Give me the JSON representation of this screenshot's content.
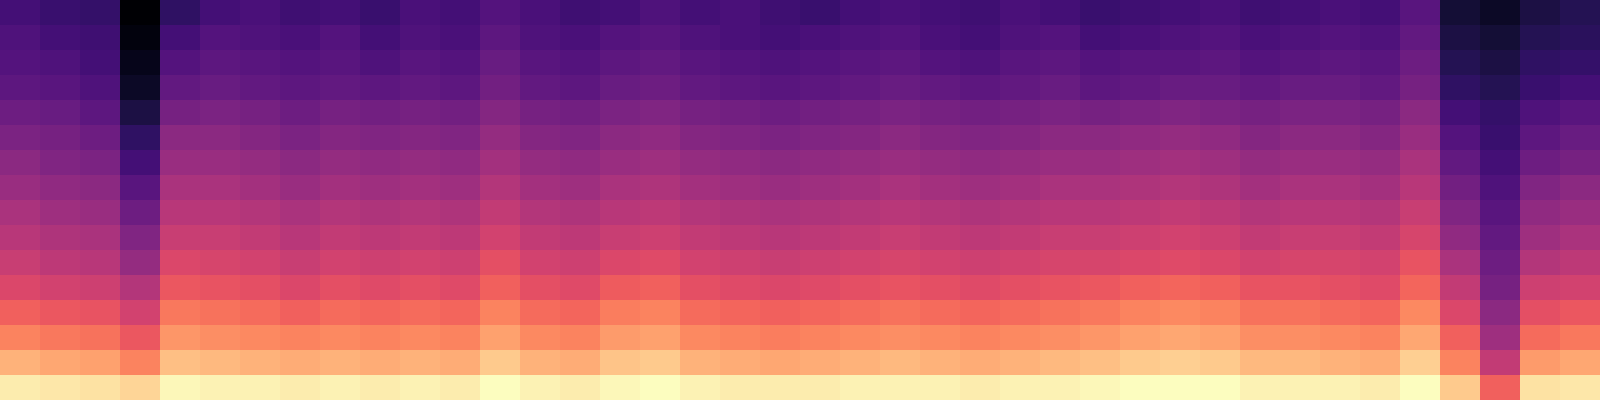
{
  "chart_data": {
    "type": "heatmap",
    "color": "magma",
    "tick_labels": false,
    "cells": [
      [
        30,
        28,
        27,
        12,
        26,
        30,
        31,
        29,
        30,
        28,
        31,
        30,
        33,
        31,
        29,
        30,
        32,
        30,
        31,
        29,
        28,
        30,
        31,
        30,
        29,
        31,
        30,
        28,
        29,
        30,
        31,
        29,
        30,
        31,
        30,
        34,
        20,
        18,
        22,
        24
      ],
      [
        32,
        30,
        29,
        14,
        30,
        33,
        32,
        31,
        33,
        30,
        32,
        31,
        35,
        32,
        31,
        33,
        34,
        32,
        31,
        30,
        31,
        32,
        33,
        31,
        30,
        32,
        33,
        30,
        31,
        32,
        33,
        31,
        32,
        33,
        32,
        36,
        22,
        20,
        24,
        25
      ],
      [
        33,
        32,
        30,
        16,
        33,
        35,
        34,
        33,
        34,
        32,
        34,
        33,
        37,
        34,
        33,
        35,
        36,
        34,
        33,
        32,
        33,
        34,
        35,
        33,
        32,
        34,
        35,
        33,
        34,
        34,
        35,
        33,
        34,
        35,
        34,
        38,
        24,
        22,
        26,
        27
      ],
      [
        35,
        34,
        32,
        18,
        36,
        37,
        36,
        35,
        36,
        35,
        36,
        35,
        39,
        36,
        35,
        37,
        38,
        36,
        35,
        34,
        35,
        36,
        37,
        36,
        35,
        36,
        37,
        35,
        36,
        37,
        37,
        36,
        37,
        37,
        36,
        40,
        26,
        24,
        28,
        30
      ],
      [
        38,
        37,
        35,
        22,
        40,
        41,
        40,
        38,
        40,
        39,
        40,
        39,
        43,
        40,
        39,
        41,
        42,
        40,
        39,
        38,
        39,
        40,
        41,
        40,
        39,
        40,
        41,
        40,
        41,
        42,
        41,
        40,
        41,
        41,
        40,
        44,
        30,
        27,
        32,
        34
      ],
      [
        41,
        40,
        38,
        26,
        44,
        44,
        43,
        41,
        43,
        42,
        43,
        42,
        46,
        43,
        42,
        44,
        45,
        43,
        42,
        41,
        42,
        43,
        44,
        43,
        42,
        43,
        44,
        44,
        45,
        46,
        45,
        43,
        44,
        44,
        43,
        47,
        33,
        28,
        35,
        37
      ],
      [
        44,
        42,
        41,
        30,
        47,
        47,
        46,
        44,
        46,
        45,
        46,
        45,
        49,
        46,
        45,
        47,
        48,
        46,
        45,
        44,
        45,
        46,
        47,
        46,
        45,
        46,
        47,
        47,
        48,
        49,
        48,
        46,
        47,
        47,
        46,
        50,
        36,
        30,
        38,
        40
      ],
      [
        47,
        45,
        44,
        34,
        50,
        50,
        49,
        47,
        49,
        48,
        49,
        48,
        52,
        49,
        48,
        50,
        51,
        49,
        48,
        47,
        48,
        49,
        50,
        49,
        48,
        49,
        50,
        50,
        51,
        52,
        51,
        49,
        50,
        50,
        49,
        53,
        39,
        32,
        42,
        44
      ],
      [
        50,
        48,
        47,
        38,
        53,
        53,
        52,
        50,
        52,
        51,
        52,
        51,
        55,
        52,
        51,
        53,
        54,
        52,
        51,
        50,
        51,
        52,
        53,
        52,
        51,
        52,
        53,
        53,
        54,
        55,
        54,
        52,
        53,
        53,
        52,
        56,
        42,
        34,
        45,
        47
      ],
      [
        53,
        51,
        50,
        42,
        56,
        56,
        55,
        53,
        55,
        54,
        55,
        54,
        58,
        55,
        54,
        56,
        57,
        55,
        54,
        53,
        54,
        55,
        56,
        55,
        54,
        55,
        56,
        56,
        57,
        58,
        57,
        55,
        56,
        56,
        55,
        59,
        45,
        36,
        48,
        50
      ],
      [
        56,
        54,
        53,
        46,
        60,
        59,
        58,
        56,
        58,
        57,
        58,
        57,
        62,
        58,
        57,
        60,
        61,
        58,
        57,
        56,
        57,
        58,
        59,
        58,
        57,
        58,
        59,
        59,
        60,
        61,
        60,
        58,
        59,
        59,
        58,
        63,
        50,
        38,
        52,
        54
      ],
      [
        60,
        58,
        57,
        52,
        64,
        63,
        62,
        60,
        62,
        61,
        62,
        61,
        66,
        62,
        61,
        65,
        66,
        62,
        61,
        60,
        61,
        62,
        63,
        62,
        61,
        62,
        63,
        64,
        66,
        67,
        66,
        63,
        63,
        62,
        61,
        67,
        55,
        40,
        57,
        58
      ],
      [
        66,
        64,
        63,
        58,
        70,
        69,
        68,
        66,
        68,
        67,
        68,
        67,
        72,
        68,
        67,
        71,
        72,
        68,
        67,
        66,
        67,
        68,
        69,
        68,
        67,
        68,
        69,
        70,
        72,
        73,
        72,
        69,
        69,
        68,
        67,
        73,
        60,
        44,
        62,
        64
      ],
      [
        72,
        70,
        69,
        64,
        75,
        74,
        73,
        72,
        73,
        72,
        73,
        72,
        77,
        73,
        72,
        76,
        77,
        73,
        72,
        71,
        72,
        73,
        74,
        73,
        72,
        73,
        74,
        75,
        77,
        78,
        77,
        74,
        74,
        73,
        72,
        78,
        66,
        48,
        68,
        70
      ],
      [
        80,
        78,
        77,
        72,
        82,
        81,
        80,
        79,
        80,
        79,
        80,
        79,
        84,
        80,
        79,
        83,
        84,
        80,
        79,
        78,
        79,
        80,
        81,
        80,
        79,
        80,
        81,
        82,
        84,
        85,
        84,
        81,
        81,
        80,
        79,
        85,
        72,
        55,
        76,
        78
      ],
      [
        90,
        89,
        88,
        86,
        92,
        91,
        91,
        90,
        91,
        90,
        91,
        90,
        93,
        91,
        90,
        92,
        93,
        91,
        90,
        90,
        90,
        91,
        91,
        91,
        90,
        91,
        91,
        92,
        93,
        93,
        93,
        91,
        91,
        91,
        90,
        93,
        84,
        66,
        88,
        89
      ]
    ]
  }
}
